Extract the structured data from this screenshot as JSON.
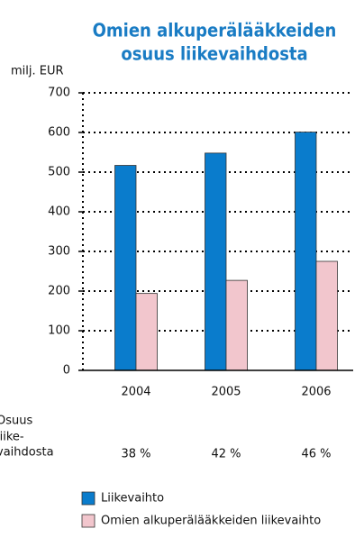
{
  "chart_data": {
    "type": "bar",
    "title": [
      "Omien alkuperälääkkeiden",
      "osuus liikevaihdosta"
    ],
    "y_label": "milj. EUR",
    "categories": [
      "2004",
      "2005",
      "2006"
    ],
    "series": [
      {
        "name": "Liikevaihto",
        "color": "#0a7ccc",
        "values": [
          517,
          548,
          601
        ]
      },
      {
        "name": "Omien alkuperälääkkeiden liikevaihto",
        "color": "#f2c6cd",
        "values": [
          194,
          227,
          275
        ]
      }
    ],
    "ylim": [
      0,
      700
    ],
    "yticks": [
      0,
      100,
      200,
      300,
      400,
      500,
      600,
      700
    ],
    "grid": true,
    "share": {
      "label": [
        "Osuus",
        "liike-",
        "vaihdosta"
      ],
      "values": [
        38,
        42,
        46
      ],
      "value_labels": [
        "38 %",
        "42 %",
        "46 %"
      ]
    }
  }
}
